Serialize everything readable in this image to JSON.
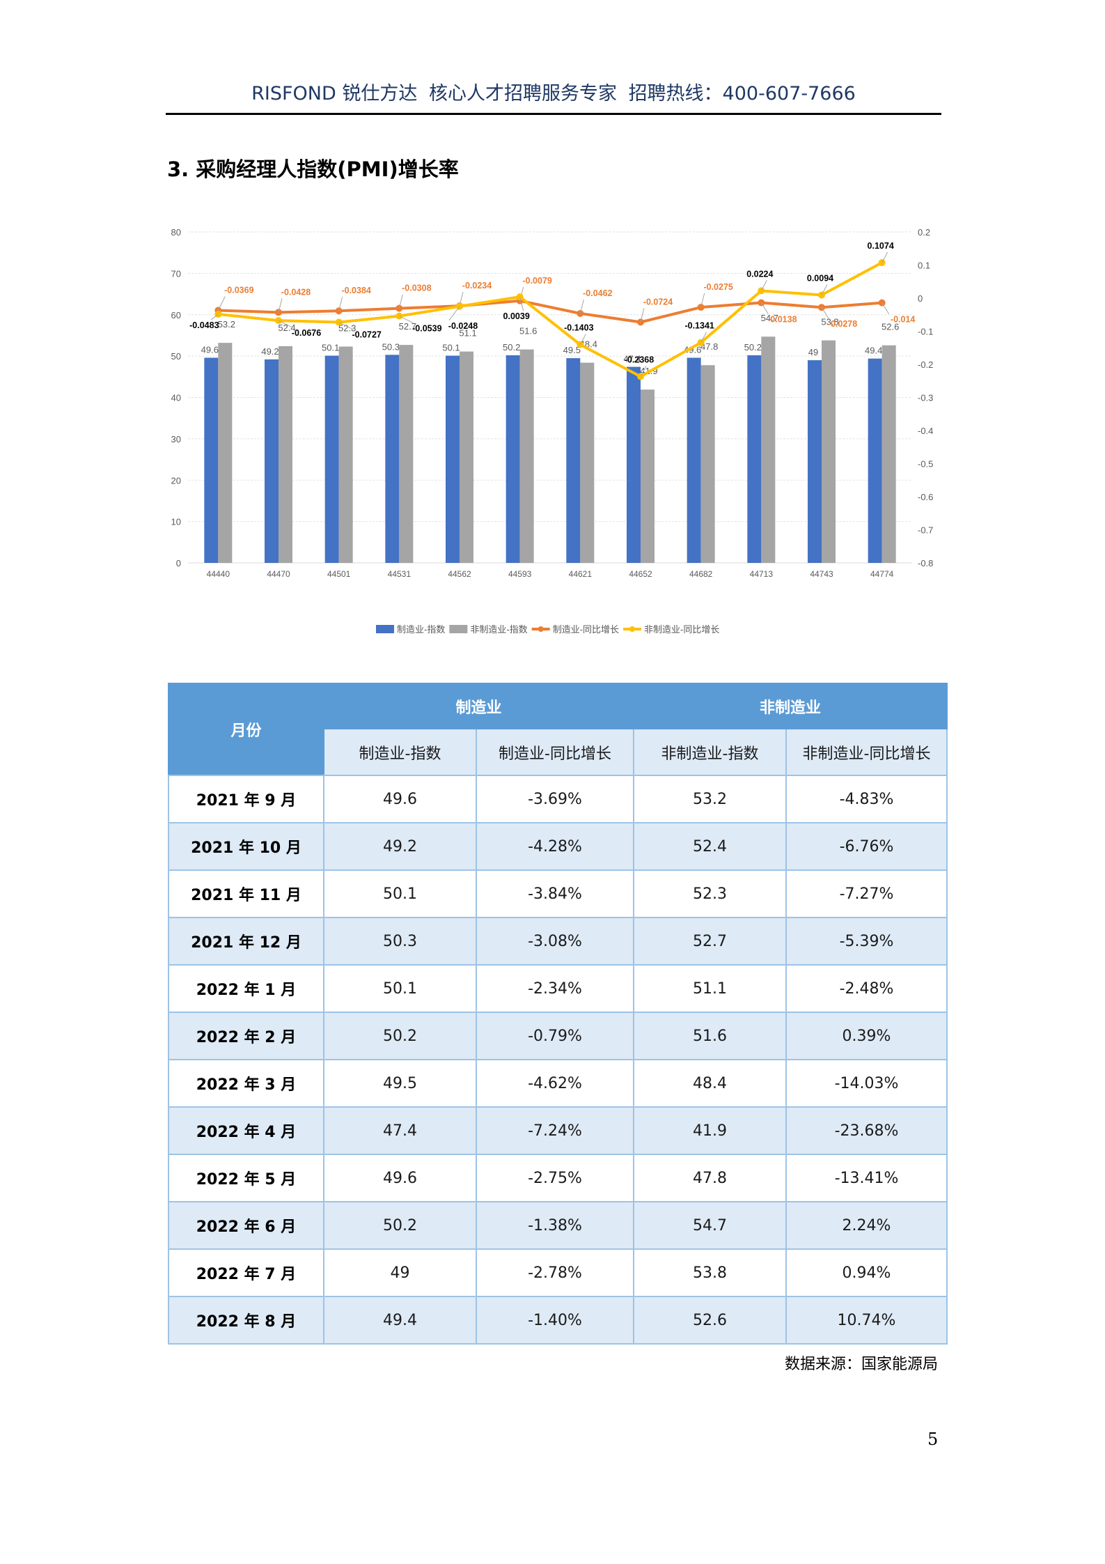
{
  "header": {
    "brand": "RISFOND 锐仕方达",
    "tagline": "核心人才招聘服务专家",
    "hotline": "招聘热线：400-607-7666"
  },
  "section": {
    "title": "3. 采购经理人指数(PMI)增长率"
  },
  "chart_data": {
    "type": "bar+line",
    "title": "",
    "categories": [
      "44440",
      "44470",
      "44501",
      "44531",
      "44562",
      "44593",
      "44621",
      "44652",
      "44682",
      "44713",
      "44743",
      "44774"
    ],
    "series": [
      {
        "name": "制造业-指数",
        "type": "bar",
        "axis": "left",
        "color": "#4472c4",
        "values": [
          49.6,
          49.2,
          50.1,
          50.3,
          50.1,
          50.2,
          49.5,
          47.4,
          49.6,
          50.2,
          49,
          49.4
        ],
        "labels": [
          "49.6",
          "49.2",
          "50.1",
          "50.3",
          "50.1",
          "50.2",
          "49.5",
          "47.4",
          "49.6",
          "50.2",
          "49",
          "49.4"
        ]
      },
      {
        "name": "非制造业-指数",
        "type": "bar",
        "axis": "left",
        "color": "#a5a5a5",
        "values": [
          53.2,
          52.4,
          52.3,
          52.7,
          51.1,
          51.6,
          48.4,
          41.9,
          47.8,
          54.7,
          53.8,
          52.6
        ],
        "labels": [
          "53.2",
          "52.4",
          "52.3",
          "52.7",
          "51.1",
          "51.6",
          "48.4",
          "41.9",
          "47.8",
          "54.7",
          "53.8",
          "52.6"
        ]
      },
      {
        "name": "制造业-同比增长",
        "type": "line",
        "axis": "right",
        "color": "#ed7d31",
        "values": [
          -0.0369,
          -0.0428,
          -0.0384,
          -0.0308,
          -0.0234,
          -0.0079,
          -0.0462,
          -0.0724,
          -0.0275,
          -0.0138,
          -0.0278,
          -0.014
        ],
        "labels": [
          "-0.0369",
          "-0.0428",
          "-0.0384",
          "-0.0308",
          "-0.0234",
          "-0.0079",
          "-0.0462",
          "-0.0724",
          "-0.0275",
          "-0.0138",
          "-0.0278",
          "-0.014"
        ]
      },
      {
        "name": "非制造业-同比增长",
        "type": "line",
        "axis": "right",
        "color": "#ffc000",
        "values": [
          -0.0483,
          -0.0676,
          -0.0727,
          -0.0539,
          -0.0248,
          0.0039,
          -0.1403,
          -0.2368,
          -0.1341,
          0.0224,
          0.0094,
          0.1074
        ],
        "labels": [
          "-0.0483",
          "-0.0676",
          "-0.0727",
          "-0.0539",
          "-0.0248",
          "0.0039",
          "-0.1403",
          "-0.2368",
          "-0.1341",
          "0.0224",
          "0.0094",
          "0.1074"
        ]
      }
    ],
    "y_left": {
      "ticks": [
        "0",
        "10",
        "20",
        "30",
        "40",
        "50",
        "60",
        "70",
        "80"
      ],
      "ylim": [
        0,
        80
      ]
    },
    "y_right": {
      "ticks": [
        "-0.8",
        "-0.7",
        "-0.6",
        "-0.5",
        "-0.4",
        "-0.3",
        "-0.2",
        "-0.1",
        "0",
        "0.1",
        "0.2"
      ],
      "ylim": [
        -0.8,
        0.2
      ]
    },
    "xlabel": "",
    "ylabel": "",
    "grid": true,
    "legend_position": "bottom"
  },
  "table": {
    "month_header": "月份",
    "group_headers": [
      "制造业",
      "非制造业"
    ],
    "sub_headers": [
      "制造业-指数",
      "制造业-同比增长",
      "非制造业-指数",
      "非制造业-同比增长"
    ],
    "rows": [
      {
        "month": "2021 年 9 月",
        "mfg_index": "49.6",
        "mfg_yoy": "-3.69%",
        "nonmfg_index": "53.2",
        "nonmfg_yoy": "-4.83%"
      },
      {
        "month": "2021 年 10 月",
        "mfg_index": "49.2",
        "mfg_yoy": "-4.28%",
        "nonmfg_index": "52.4",
        "nonmfg_yoy": "-6.76%"
      },
      {
        "month": "2021 年 11 月",
        "mfg_index": "50.1",
        "mfg_yoy": "-3.84%",
        "nonmfg_index": "52.3",
        "nonmfg_yoy": "-7.27%"
      },
      {
        "month": "2021 年 12 月",
        "mfg_index": "50.3",
        "mfg_yoy": "-3.08%",
        "nonmfg_index": "52.7",
        "nonmfg_yoy": "-5.39%"
      },
      {
        "month": "2022 年 1 月",
        "mfg_index": "50.1",
        "mfg_yoy": "-2.34%",
        "nonmfg_index": "51.1",
        "nonmfg_yoy": "-2.48%"
      },
      {
        "month": "2022 年 2 月",
        "mfg_index": "50.2",
        "mfg_yoy": "-0.79%",
        "nonmfg_index": "51.6",
        "nonmfg_yoy": "0.39%"
      },
      {
        "month": "2022 年 3 月",
        "mfg_index": "49.5",
        "mfg_yoy": "-4.62%",
        "nonmfg_index": "48.4",
        "nonmfg_yoy": "-14.03%"
      },
      {
        "month": "2022 年 4 月",
        "mfg_index": "47.4",
        "mfg_yoy": "-7.24%",
        "nonmfg_index": "41.9",
        "nonmfg_yoy": "-23.68%"
      },
      {
        "month": "2022 年 5 月",
        "mfg_index": "49.6",
        "mfg_yoy": "-2.75%",
        "nonmfg_index": "47.8",
        "nonmfg_yoy": "-13.41%"
      },
      {
        "month": "2022 年 6 月",
        "mfg_index": "50.2",
        "mfg_yoy": "-1.38%",
        "nonmfg_index": "54.7",
        "nonmfg_yoy": "2.24%"
      },
      {
        "month": "2022 年 7 月",
        "mfg_index": "49",
        "mfg_yoy": "-2.78%",
        "nonmfg_index": "53.8",
        "nonmfg_yoy": "0.94%"
      },
      {
        "month": "2022 年 8 月",
        "mfg_index": "49.4",
        "mfg_yoy": "-1.40%",
        "nonmfg_index": "52.6",
        "nonmfg_yoy": "10.74%"
      }
    ]
  },
  "footer": {
    "source": "数据来源：国家能源局",
    "page_number": "5"
  }
}
